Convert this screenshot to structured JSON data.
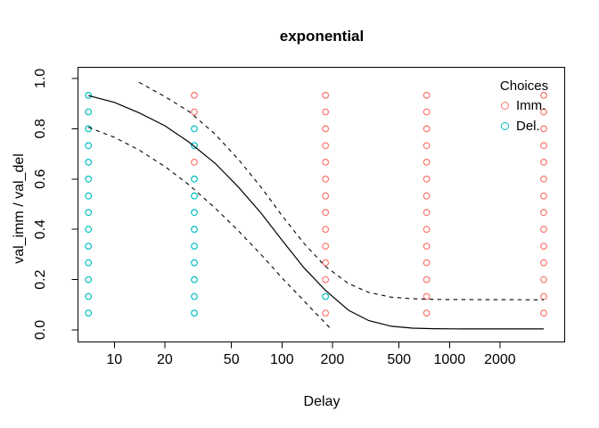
{
  "title": "exponential",
  "axes": {
    "x": {
      "label": "Delay",
      "scale": "log10",
      "ticks": [
        10,
        20,
        50,
        100,
        200,
        500,
        1000,
        2000
      ]
    },
    "y": {
      "label": "val_imm / val_del",
      "ticks": [
        0.0,
        0.2,
        0.4,
        0.6,
        0.8,
        1.0
      ]
    }
  },
  "legend": {
    "title": "Choices",
    "items": [
      {
        "label": "Imm.",
        "color": "#F8766D"
      },
      {
        "label": "Del.",
        "color": "#00BFC4"
      }
    ]
  },
  "colors": {
    "immediate": "#F8766D",
    "delayed": "#00BFC4",
    "line": "#000000"
  },
  "chart_data": {
    "type": "scatter",
    "title": "exponential",
    "xlabel": "Delay",
    "ylabel": "val_imm / val_del",
    "x_scale": "log10",
    "x_ticks": [
      10,
      20,
      50,
      100,
      200,
      500,
      1000,
      2000
    ],
    "y_ticks": [
      0.0,
      0.2,
      0.4,
      0.6,
      0.8,
      1.0
    ],
    "xlim": [
      6,
      4850
    ],
    "ylim": [
      -0.05,
      1.05
    ],
    "grid": false,
    "legend_position": "top-right",
    "delays": [
      7,
      30,
      182,
      730,
      3650
    ],
    "ratios": [
      0.067,
      0.133,
      0.2,
      0.267,
      0.333,
      0.4,
      0.467,
      0.533,
      0.6,
      0.667,
      0.733,
      0.8,
      0.867,
      0.933
    ],
    "choices": [
      [
        "Del",
        "Del",
        "Del",
        "Del",
        "Del",
        "Del",
        "Del",
        "Del",
        "Del",
        "Del",
        "Del",
        "Del",
        "Del",
        "Del"
      ],
      [
        "Del",
        "Del",
        "Del",
        "Del",
        "Del",
        "Del",
        "Del",
        "Del",
        "Del",
        "Imm",
        "Del",
        "Del",
        "Imm",
        "Imm"
      ],
      [
        "Imm",
        "Del",
        "Imm",
        "Imm",
        "Imm",
        "Imm",
        "Imm",
        "Imm",
        "Imm",
        "Imm",
        "Imm",
        "Imm",
        "Imm",
        "Imm"
      ],
      [
        "Imm",
        "Imm",
        "Imm",
        "Imm",
        "Imm",
        "Imm",
        "Imm",
        "Imm",
        "Imm",
        "Imm",
        "Imm",
        "Imm",
        "Imm",
        "Imm"
      ],
      [
        "Imm",
        "Imm",
        "Imm",
        "Imm",
        "Imm",
        "Imm",
        "Imm",
        "Imm",
        "Imm",
        "Imm",
        "Imm",
        "Imm",
        "Imm",
        "Imm"
      ]
    ],
    "curves": {
      "fit": [
        [
          7,
          0.932
        ],
        [
          10,
          0.905
        ],
        [
          14,
          0.864
        ],
        [
          20,
          0.812
        ],
        [
          28,
          0.746
        ],
        [
          40,
          0.662
        ],
        [
          55,
          0.568
        ],
        [
          75,
          0.465
        ],
        [
          100,
          0.357
        ],
        [
          135,
          0.248
        ],
        [
          182,
          0.157
        ],
        [
          250,
          0.078
        ],
        [
          330,
          0.037
        ],
        [
          450,
          0.0145
        ],
        [
          600,
          0.007
        ],
        [
          800,
          0.0048
        ],
        [
          1200,
          0.004
        ],
        [
          3650,
          0.004
        ]
      ],
      "ci_upper": [
        [
          14,
          0.985
        ],
        [
          20,
          0.928
        ],
        [
          28,
          0.868
        ],
        [
          40,
          0.778
        ],
        [
          55,
          0.678
        ],
        [
          75,
          0.568
        ],
        [
          100,
          0.455
        ],
        [
          135,
          0.345
        ],
        [
          182,
          0.252
        ],
        [
          250,
          0.184
        ],
        [
          330,
          0.149
        ],
        [
          450,
          0.13
        ],
        [
          600,
          0.124
        ],
        [
          900,
          0.121
        ],
        [
          3650,
          0.12
        ]
      ],
      "ci_lower": [
        [
          7,
          0.806
        ],
        [
          10,
          0.766
        ],
        [
          14,
          0.716
        ],
        [
          20,
          0.65
        ],
        [
          28,
          0.576
        ],
        [
          40,
          0.484
        ],
        [
          55,
          0.394
        ],
        [
          75,
          0.3
        ],
        [
          100,
          0.207
        ],
        [
          130,
          0.128
        ],
        [
          154,
          0.076
        ],
        [
          175,
          0.038
        ],
        [
          197,
          0.002
        ]
      ]
    }
  }
}
